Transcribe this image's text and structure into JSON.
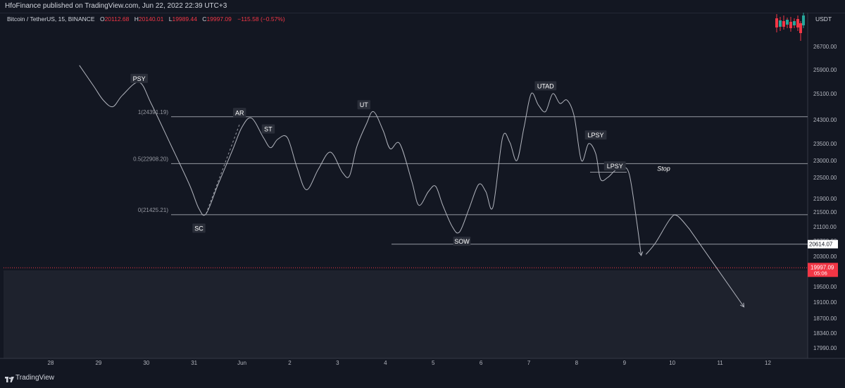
{
  "header": {
    "publisher_line": "HfoFinance published on TradingView.com, Jun 22, 2022 22:39 UTC+3"
  },
  "legend": {
    "symbol": "Bitcoin / TetherUS, 15, BINANCE",
    "o_label": "O",
    "o_value": "20112.68",
    "h_label": "H",
    "h_value": "20140.01",
    "l_label": "L",
    "l_value": "19989.44",
    "c_label": "C",
    "c_value": "19997.09",
    "change": "−115.58 (−0.57%)"
  },
  "footer": {
    "brand": "TradingView"
  },
  "colors": {
    "background": "#131722",
    "lower_panel": "#1e222d",
    "line": "#d1d4dc",
    "axis_text": "#b2b5be",
    "price_red": "#f23645",
    "up_green": "#26a69a",
    "label_bg": "#2a2e39"
  },
  "chart_data": {
    "type": "line",
    "currency": "USDT",
    "x_tick_labels": [
      "28",
      "29",
      "30",
      "31",
      "Jun",
      "2",
      "3",
      "4",
      "5",
      "6",
      "7",
      "8",
      "9",
      "10",
      "11",
      "12"
    ],
    "y_tick_labels": [
      "26700.00",
      "25900.00",
      "25100.00",
      "24300.00",
      "23500.00",
      "23000.00",
      "22500.00",
      "21900.00",
      "21500.00",
      "21100.00",
      "20700.00",
      "20300.00",
      "19500.00",
      "19100.00",
      "18700.00",
      "18340.00",
      "17990.00"
    ],
    "y_ticks": [
      26700,
      25900,
      25100,
      24300,
      23500,
      23000,
      22500,
      21900,
      21500,
      21100,
      20700,
      20300,
      19500,
      19100,
      18700,
      18340,
      17990
    ],
    "price_labels": {
      "level": "20614.07",
      "last": "19997.09",
      "countdown": "05:06"
    },
    "fib_levels": [
      {
        "label": "1(24391.19)",
        "price": 24391.19
      },
      {
        "label": "0.5(22908.20)",
        "price": 22908.2
      },
      {
        "label": "0(21425.21)",
        "price": 21425.21
      }
    ],
    "sow_level": 20614.07,
    "last_price": 19997.09,
    "path_points": [
      {
        "day": 28.6,
        "price": 26050
      },
      {
        "day": 28.9,
        "price": 25350
      },
      {
        "day": 29.1,
        "price": 24900
      },
      {
        "day": 29.3,
        "price": 24700
      },
      {
        "day": 29.5,
        "price": 25050
      },
      {
        "day": 29.85,
        "price": 25480
      },
      {
        "day": 30.1,
        "price": 24800
      },
      {
        "day": 30.5,
        "price": 23500
      },
      {
        "day": 30.9,
        "price": 22300
      },
      {
        "day": 31.1,
        "price": 21600
      },
      {
        "day": 31.25,
        "price": 21450
      },
      {
        "day": 31.5,
        "price": 22300
      },
      {
        "day": 31.8,
        "price": 23300
      },
      {
        "day": 32.0,
        "price": 24050
      },
      {
        "day": 32.2,
        "price": 24350
      },
      {
        "day": 32.45,
        "price": 23700
      },
      {
        "day": 32.6,
        "price": 23380
      },
      {
        "day": 32.75,
        "price": 23650
      },
      {
        "day": 32.95,
        "price": 23700
      },
      {
        "day": 33.15,
        "price": 22800
      },
      {
        "day": 33.35,
        "price": 22150
      },
      {
        "day": 33.6,
        "price": 22750
      },
      {
        "day": 33.85,
        "price": 23250
      },
      {
        "day": 34.1,
        "price": 22650
      },
      {
        "day": 34.25,
        "price": 22550
      },
      {
        "day": 34.4,
        "price": 23400
      },
      {
        "day": 34.6,
        "price": 24150
      },
      {
        "day": 34.75,
        "price": 24550
      },
      {
        "day": 34.95,
        "price": 23950
      },
      {
        "day": 35.1,
        "price": 23350
      },
      {
        "day": 35.3,
        "price": 23500
      },
      {
        "day": 35.55,
        "price": 22400
      },
      {
        "day": 35.7,
        "price": 21700
      },
      {
        "day": 35.9,
        "price": 22100
      },
      {
        "day": 36.05,
        "price": 22250
      },
      {
        "day": 36.2,
        "price": 21700
      },
      {
        "day": 36.4,
        "price": 21100
      },
      {
        "day": 36.55,
        "price": 20950
      },
      {
        "day": 36.75,
        "price": 21600
      },
      {
        "day": 36.95,
        "price": 22300
      },
      {
        "day": 37.1,
        "price": 22100
      },
      {
        "day": 37.25,
        "price": 21650
      },
      {
        "day": 37.45,
        "price": 23700
      },
      {
        "day": 37.6,
        "price": 23550
      },
      {
        "day": 37.75,
        "price": 23000
      },
      {
        "day": 37.9,
        "price": 24050
      },
      {
        "day": 38.05,
        "price": 25100
      },
      {
        "day": 38.2,
        "price": 24750
      },
      {
        "day": 38.35,
        "price": 24550
      },
      {
        "day": 38.5,
        "price": 25100
      },
      {
        "day": 38.65,
        "price": 24800
      },
      {
        "day": 38.8,
        "price": 24900
      },
      {
        "day": 38.95,
        "price": 24400
      },
      {
        "day": 39.1,
        "price": 23000
      },
      {
        "day": 39.25,
        "price": 23500
      },
      {
        "day": 39.4,
        "price": 23200
      },
      {
        "day": 39.5,
        "price": 22450
      },
      {
        "day": 39.65,
        "price": 22500
      },
      {
        "day": 39.8,
        "price": 22700
      },
      {
        "day": 39.95,
        "price": 22800
      },
      {
        "day": 40.1,
        "price": 22600
      },
      {
        "day": 40.25,
        "price": 21300
      },
      {
        "day": 40.35,
        "price": 20320
      }
    ],
    "projection_points": [
      {
        "day": 40.45,
        "price": 20350
      },
      {
        "day": 40.65,
        "price": 20650
      },
      {
        "day": 40.95,
        "price": 21300
      },
      {
        "day": 41.1,
        "price": 21400
      },
      {
        "day": 41.35,
        "price": 21050
      },
      {
        "day": 42.5,
        "price": 18980
      }
    ],
    "ar_trendline": [
      {
        "day": 31.25,
        "price": 21450
      },
      {
        "day": 31.95,
        "price": 24150
      }
    ],
    "annotations": [
      {
        "text": "PSY",
        "day": 29.85,
        "price": 25600,
        "boxed": true
      },
      {
        "text": "AR",
        "day": 31.95,
        "price": 24510,
        "boxed": true
      },
      {
        "text": "ST",
        "day": 32.55,
        "price": 23980,
        "boxed": true
      },
      {
        "text": "UT",
        "day": 34.55,
        "price": 24750,
        "boxed": true
      },
      {
        "text": "SC",
        "day": 31.1,
        "price": 21050,
        "boxed": true
      },
      {
        "text": "SOW",
        "day": 36.6,
        "price": 20680,
        "boxed": true
      },
      {
        "text": "UTAD",
        "day": 38.35,
        "price": 25350,
        "boxed": true
      },
      {
        "text": "LPSY",
        "day": 39.4,
        "price": 23780,
        "boxed": true
      },
      {
        "text": "LPSY",
        "day": 39.8,
        "price": 22830,
        "boxed": true
      },
      {
        "text": "Stop",
        "day": 40.35,
        "price": 22760,
        "boxed": false
      }
    ],
    "grid": false,
    "legend_position": "top-left"
  }
}
